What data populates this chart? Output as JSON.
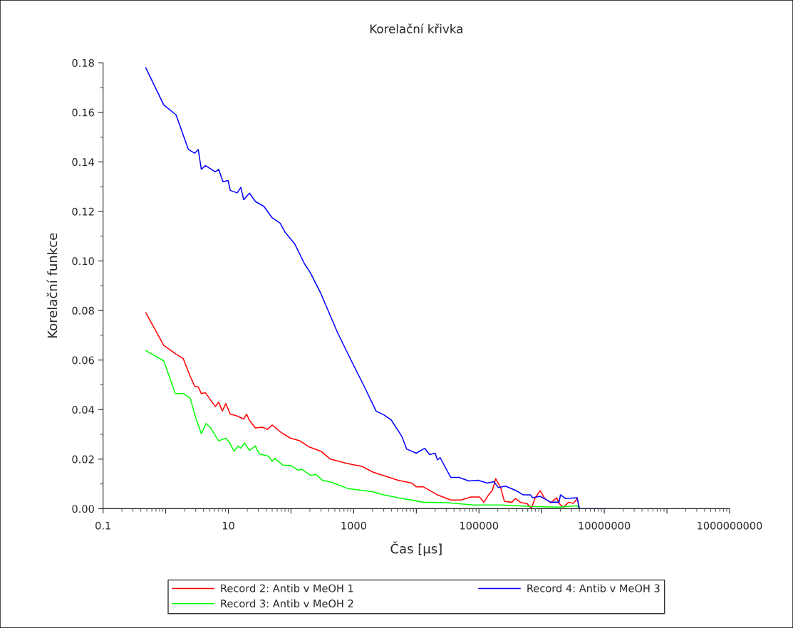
{
  "chart_data": {
    "type": "line",
    "title": "Korelační křivka",
    "xlabel": "Čas [μs]",
    "ylabel": "Korelační funkce",
    "log": "x",
    "xlim": [
      0.1,
      1000000000
    ],
    "ylim": [
      0,
      0.18
    ],
    "xticks": [
      {
        "value": 0.1,
        "label": "0.1"
      },
      {
        "value": 1,
        "label": null
      },
      {
        "value": 10,
        "label": "10"
      },
      {
        "value": 100,
        "label": null
      },
      {
        "value": 1000,
        "label": "1000"
      },
      {
        "value": 10000,
        "label": null
      },
      {
        "value": 100000,
        "label": "100000"
      },
      {
        "value": 1000000,
        "label": null
      },
      {
        "value": 10000000,
        "label": "10000000"
      },
      {
        "value": 100000000,
        "label": null
      },
      {
        "value": 1000000000,
        "label": "1000000000"
      }
    ],
    "yticks": [
      {
        "value": 0,
        "label": "0.00"
      },
      {
        "value": 0.02,
        "label": "0.02"
      },
      {
        "value": 0.04,
        "label": "0.04"
      },
      {
        "value": 0.06,
        "label": "0.06"
      },
      {
        "value": 0.08,
        "label": "0.08"
      },
      {
        "value": 0.1,
        "label": "0.10"
      },
      {
        "value": 0.12,
        "label": "0.12"
      },
      {
        "value": 0.14,
        "label": "0.14"
      },
      {
        "value": 0.16,
        "label": "0.16"
      },
      {
        "value": 0.18,
        "label": "0.18"
      }
    ],
    "grid": false,
    "legend": "bottom",
    "marker": "none",
    "line_style": "solid",
    "series": [
      {
        "name": "Record 2: Antib v MeOH 1",
        "color": "#ff0000",
        "x": [
          0.48,
          0.93,
          1.46,
          1.9,
          2.45,
          2.9,
          3.3,
          3.7,
          4.3,
          6.2,
          7.0,
          8.0,
          9.1,
          10.7,
          13.8,
          17.6,
          19.5,
          21.7,
          27,
          35,
          42,
          50,
          71,
          97,
          138,
          192,
          300,
          425,
          790,
          1350,
          2050,
          3150,
          5100,
          8500,
          10000,
          13000,
          21700,
          35500,
          52000,
          74000,
          102000,
          120000,
          145000,
          163000,
          185000,
          222000,
          255000,
          335000,
          380000,
          470000,
          580000,
          690000,
          790000,
          950000,
          1120000,
          1400000,
          1740000,
          1900000,
          2240000,
          2700000,
          3200000,
          3700000,
          4000000
        ],
        "values": [
          0.0791,
          0.0659,
          0.0624,
          0.0606,
          0.0535,
          0.0494,
          0.0491,
          0.0465,
          0.0468,
          0.0412,
          0.043,
          0.0394,
          0.0424,
          0.0382,
          0.0374,
          0.0362,
          0.0382,
          0.0356,
          0.0326,
          0.0329,
          0.032,
          0.0338,
          0.0306,
          0.0285,
          0.0274,
          0.025,
          0.0232,
          0.02,
          0.0182,
          0.0171,
          0.0147,
          0.0132,
          0.0115,
          0.0103,
          0.0088,
          0.0088,
          0.0056,
          0.0035,
          0.0035,
          0.0047,
          0.0047,
          0.0026,
          0.0059,
          0.0073,
          0.0121,
          0.0085,
          0.0029,
          0.0026,
          0.0041,
          0.0024,
          0.0021,
          0.0003,
          0.0044,
          0.0073,
          0.0041,
          0.0024,
          0.0044,
          0.0021,
          0.0006,
          0.0026,
          0.0021,
          0.0041,
          0.0
        ]
      },
      {
        "name": "Record 3: Antib v MeOH 2",
        "type": "line",
        "color": "#00ff00",
        "x": [
          0.48,
          0.93,
          1.42,
          1.9,
          2.45,
          3.0,
          3.7,
          4.4,
          5.1,
          7.0,
          9.1,
          10.5,
          12.3,
          14.3,
          15.8,
          18.1,
          21.7,
          27,
          31,
          44,
          50,
          55,
          74,
          100,
          129,
          148,
          203,
          250,
          316,
          447,
          790,
          1350,
          2050,
          3000,
          5100,
          13000,
          31500,
          81000,
          230000,
          660000,
          1900000,
          3700000,
          4000000
        ],
        "values": [
          0.0638,
          0.0597,
          0.0465,
          0.0465,
          0.0447,
          0.0368,
          0.0303,
          0.0344,
          0.0329,
          0.0274,
          0.0285,
          0.0265,
          0.0232,
          0.0253,
          0.0244,
          0.0265,
          0.0235,
          0.0253,
          0.0221,
          0.0212,
          0.0191,
          0.0203,
          0.0176,
          0.0174,
          0.0156,
          0.0159,
          0.0135,
          0.0138,
          0.0115,
          0.0106,
          0.0082,
          0.0074,
          0.0068,
          0.0056,
          0.0044,
          0.0026,
          0.0024,
          0.0015,
          0.0015,
          0.0009,
          0.0006,
          0.0012,
          0.0
        ]
      },
      {
        "name": "Record 4: Antib v MeOH 3",
        "color": "#0000ff",
        "x": [
          0.48,
          0.93,
          1.46,
          2.3,
          2.9,
          3.3,
          3.7,
          4.3,
          6.2,
          7.0,
          8.2,
          9.9,
          10.7,
          13.8,
          15.8,
          17.6,
          21.7,
          27,
          37,
          50,
          67,
          81,
          114,
          163,
          203,
          300,
          550,
          930,
          1450,
          2280,
          3030,
          3950,
          5900,
          7000,
          10000,
          13600,
          16300,
          20000,
          21700,
          24000,
          35500,
          48000,
          69000,
          97000,
          136000,
          173000,
          204000,
          265000,
          390000,
          505000,
          660000,
          720000,
          950000,
          1400000,
          1900000,
          2000000,
          2400000,
          3700000,
          4000000,
          10500000
        ],
        "values": [
          0.178,
          0.163,
          0.159,
          0.145,
          0.1435,
          0.145,
          0.137,
          0.1385,
          0.136,
          0.137,
          0.132,
          0.1325,
          0.1285,
          0.1275,
          0.1297,
          0.1247,
          0.1274,
          0.124,
          0.122,
          0.1174,
          0.1153,
          0.1115,
          0.107,
          0.099,
          0.0953,
          0.0868,
          0.0712,
          0.0594,
          0.0497,
          0.0394,
          0.0379,
          0.0359,
          0.0291,
          0.0241,
          0.0224,
          0.0244,
          0.0218,
          0.0224,
          0.0197,
          0.0206,
          0.0126,
          0.0126,
          0.0112,
          0.0115,
          0.0103,
          0.0109,
          0.0085,
          0.0091,
          0.0073,
          0.0056,
          0.0056,
          0.0044,
          0.005,
          0.0026,
          0.0026,
          0.0056,
          0.0041,
          0.0044,
          0.0,
          0.0
        ]
      }
    ]
  }
}
